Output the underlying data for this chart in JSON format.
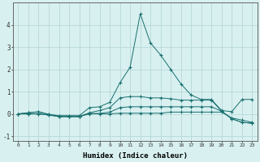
{
  "xlabel": "Humidex (Indice chaleur)",
  "background_color": "#d8f0f0",
  "grid_color": "#b8d8d8",
  "line_color": "#1a7070",
  "x": [
    0,
    1,
    2,
    3,
    4,
    5,
    6,
    7,
    8,
    9,
    10,
    11,
    12,
    13,
    14,
    15,
    16,
    17,
    18,
    19,
    20,
    21,
    22,
    23
  ],
  "series1": [
    0.0,
    0.05,
    0.08,
    -0.02,
    -0.08,
    -0.08,
    -0.08,
    0.28,
    0.32,
    0.52,
    1.4,
    2.1,
    4.5,
    3.2,
    2.65,
    2.0,
    1.35,
    0.85,
    0.65,
    0.65,
    0.15,
    0.1,
    0.65,
    0.65
  ],
  "series2": [
    0.0,
    0.0,
    0.0,
    -0.05,
    -0.12,
    -0.12,
    -0.12,
    0.02,
    0.02,
    0.08,
    0.28,
    0.32,
    0.32,
    0.32,
    0.32,
    0.32,
    0.32,
    0.32,
    0.32,
    0.32,
    0.12,
    -0.22,
    -0.38,
    -0.42
  ],
  "series3": [
    0.0,
    0.0,
    0.0,
    -0.05,
    -0.12,
    -0.12,
    -0.12,
    0.0,
    0.0,
    0.0,
    0.03,
    0.03,
    0.03,
    0.03,
    0.03,
    0.08,
    0.08,
    0.08,
    0.08,
    0.08,
    0.08,
    -0.18,
    -0.28,
    -0.38
  ],
  "series4": [
    0.0,
    0.05,
    0.1,
    -0.02,
    -0.12,
    -0.12,
    -0.12,
    0.05,
    0.15,
    0.28,
    0.72,
    0.78,
    0.78,
    0.72,
    0.72,
    0.68,
    0.62,
    0.62,
    0.62,
    0.62,
    0.12,
    -0.22,
    -0.38,
    -0.42
  ],
  "ylim": [
    -1.2,
    5.0
  ],
  "xlim": [
    -0.5,
    23.5
  ],
  "yticks": [
    -1,
    0,
    1,
    2,
    3,
    4
  ],
  "xticks": [
    0,
    1,
    2,
    3,
    4,
    5,
    6,
    7,
    8,
    9,
    10,
    11,
    12,
    13,
    14,
    15,
    16,
    17,
    18,
    19,
    20,
    21,
    22,
    23
  ]
}
